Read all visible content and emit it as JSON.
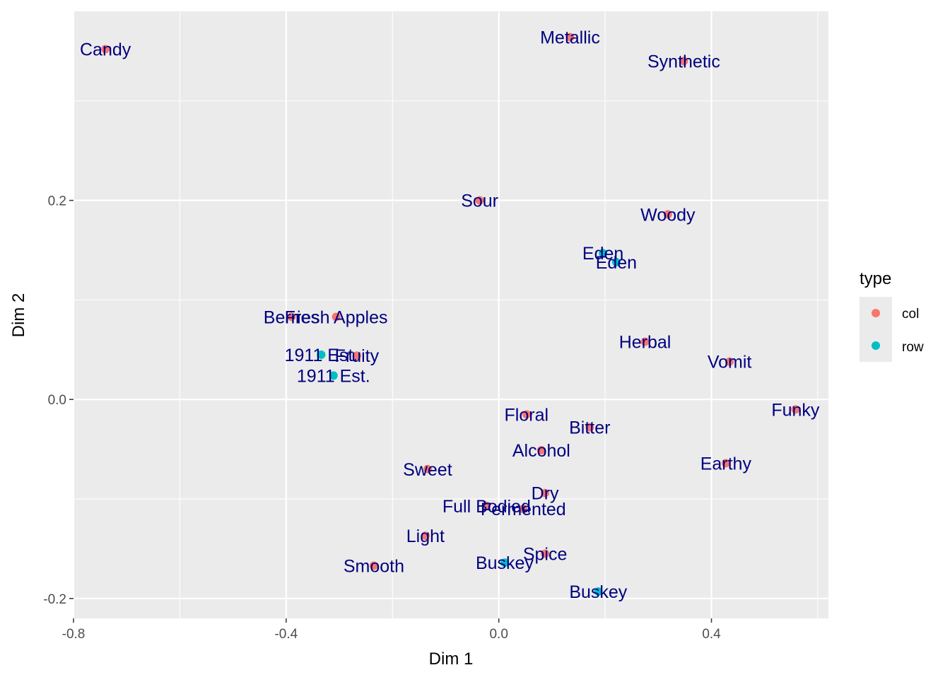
{
  "chart_data": {
    "type": "scatter",
    "xlabel": "Dim 1",
    "ylabel": "Dim 2",
    "xlim": [
      -0.8,
      0.62
    ],
    "ylim": [
      -0.22,
      0.39
    ],
    "x_ticks": [
      -0.8,
      -0.4,
      0.0,
      0.4
    ],
    "x_tick_labels": [
      "-0.8",
      "-0.4",
      "0.0",
      "0.4"
    ],
    "y_ticks": [
      -0.2,
      0.0,
      0.2
    ],
    "y_tick_labels": [
      "-0.2",
      "0.0",
      "0.2"
    ],
    "grid": true,
    "legend": {
      "title": "type",
      "placement": "right",
      "entries": [
        {
          "label": "col",
          "color": "#F8766D"
        },
        {
          "label": "row",
          "color": "#00BFC4"
        }
      ]
    },
    "colors": {
      "col": "#F8766D",
      "row": "#00BFC4",
      "label": "#000080",
      "panel": "#EBEBEB",
      "grid": "#FFFFFF"
    },
    "points": [
      {
        "label": "Candy",
        "type": "col",
        "x": -0.74,
        "y": 0.352
      },
      {
        "label": "Metallic",
        "type": "col",
        "x": 0.134,
        "y": 0.364
      },
      {
        "label": "Synthetic",
        "type": "col",
        "x": 0.348,
        "y": 0.34
      },
      {
        "label": "Sour",
        "type": "col",
        "x": -0.036,
        "y": 0.2
      },
      {
        "label": "Woody",
        "type": "col",
        "x": 0.318,
        "y": 0.186
      },
      {
        "label": "Eden",
        "type": "row",
        "x": 0.196,
        "y": 0.147
      },
      {
        "label": "Eden",
        "type": "row",
        "x": 0.221,
        "y": 0.138
      },
      {
        "label": "Berries",
        "type": "col",
        "x": -0.39,
        "y": 0.083
      },
      {
        "label": "Fresh Apples",
        "type": "col",
        "x": -0.306,
        "y": 0.083
      },
      {
        "label": "Herbal",
        "type": "col",
        "x": 0.275,
        "y": 0.058
      },
      {
        "label": "Fruity",
        "type": "col",
        "x": -0.267,
        "y": 0.044
      },
      {
        "label": "1911 Est.",
        "type": "row",
        "x": -0.334,
        "y": 0.045
      },
      {
        "label": "Vomit",
        "type": "col",
        "x": 0.434,
        "y": 0.038
      },
      {
        "label": "1911 Est.",
        "type": "row",
        "x": -0.311,
        "y": 0.024
      },
      {
        "label": "Funky",
        "type": "col",
        "x": 0.558,
        "y": -0.01
      },
      {
        "label": "Floral",
        "type": "col",
        "x": 0.052,
        "y": -0.015
      },
      {
        "label": "Bitter",
        "type": "col",
        "x": 0.171,
        "y": -0.028
      },
      {
        "label": "Alcohol",
        "type": "col",
        "x": 0.08,
        "y": -0.051
      },
      {
        "label": "Earthy",
        "type": "col",
        "x": 0.427,
        "y": -0.064
      },
      {
        "label": "Sweet",
        "type": "col",
        "x": -0.134,
        "y": -0.07
      },
      {
        "label": "Dry",
        "type": "col",
        "x": 0.087,
        "y": -0.094
      },
      {
        "label": "Full Bodied",
        "type": "col",
        "x": -0.023,
        "y": -0.107
      },
      {
        "label": "Fermented",
        "type": "col",
        "x": 0.046,
        "y": -0.11
      },
      {
        "label": "Light",
        "type": "col",
        "x": -0.138,
        "y": -0.137
      },
      {
        "label": "Spice",
        "type": "col",
        "x": 0.087,
        "y": -0.155
      },
      {
        "label": "Buskey",
        "type": "row",
        "x": 0.011,
        "y": -0.164
      },
      {
        "label": "Smooth",
        "type": "col",
        "x": -0.235,
        "y": -0.167
      },
      {
        "label": "Buskey",
        "type": "row",
        "x": 0.187,
        "y": -0.193
      }
    ]
  }
}
